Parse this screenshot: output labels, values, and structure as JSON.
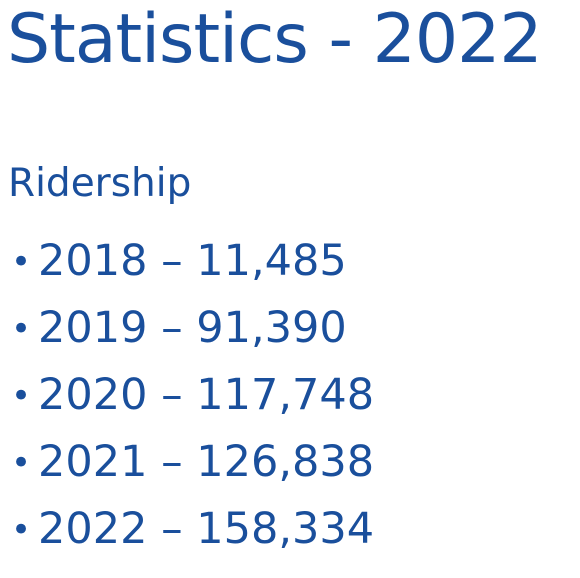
{
  "slide": {
    "title": "Statistics - 2022",
    "section_heading": "Ridership",
    "bullet_glyph": "•",
    "items": [
      {
        "text": "2018 – 11,485"
      },
      {
        "text": "2019 – 91,390"
      },
      {
        "text": "2020 – 117,748"
      },
      {
        "text": "2021 – 126,838"
      },
      {
        "text": "2022 – 158,334"
      }
    ]
  },
  "colors": {
    "text": "#1a4f9c",
    "background": "#ffffff"
  }
}
